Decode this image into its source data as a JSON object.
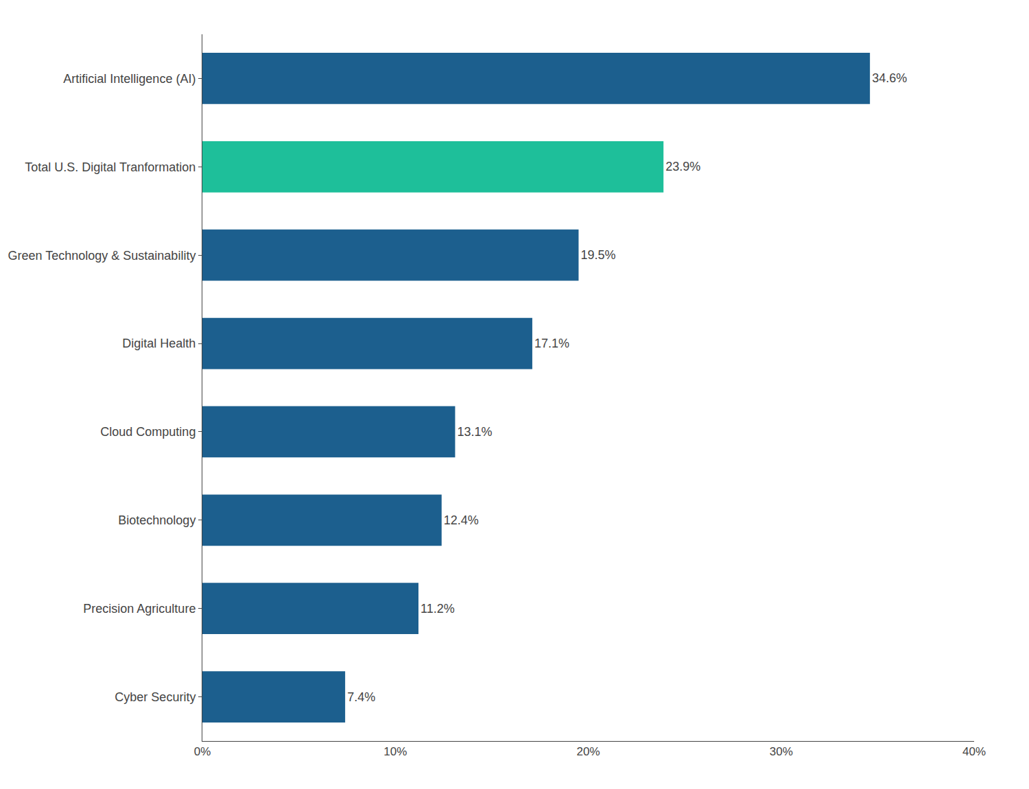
{
  "chart_data": {
    "type": "bar",
    "orientation": "horizontal",
    "categories": [
      "Cyber Security",
      "Precision Agriculture",
      "Biotechnology",
      "Cloud Computing",
      "Digital Health",
      "Green Technology & Sustainability",
      "Total U.S. Digital Tranformation",
      "Artificial Intelligence (AI)"
    ],
    "values": [
      7.4,
      11.2,
      12.4,
      13.1,
      17.1,
      19.5,
      23.9,
      34.6
    ],
    "value_labels": [
      "7.4%",
      "11.2%",
      "12.4%",
      "13.1%",
      "17.1%",
      "19.5%",
      "23.9%",
      "34.6%"
    ],
    "colors": [
      "#1c5f8e",
      "#1c5f8e",
      "#1c5f8e",
      "#1c5f8e",
      "#1c5f8e",
      "#1c5f8e",
      "#1ebf9a",
      "#1c5f8e"
    ],
    "xlim": [
      0,
      40
    ],
    "xticks": [
      {
        "value": 0,
        "label": "0%"
      },
      {
        "value": 10,
        "label": "10%"
      },
      {
        "value": 20,
        "label": "20%"
      },
      {
        "value": 30,
        "label": "30%"
      },
      {
        "value": 40,
        "label": "40%"
      }
    ],
    "data_labels": true,
    "grid": false
  }
}
